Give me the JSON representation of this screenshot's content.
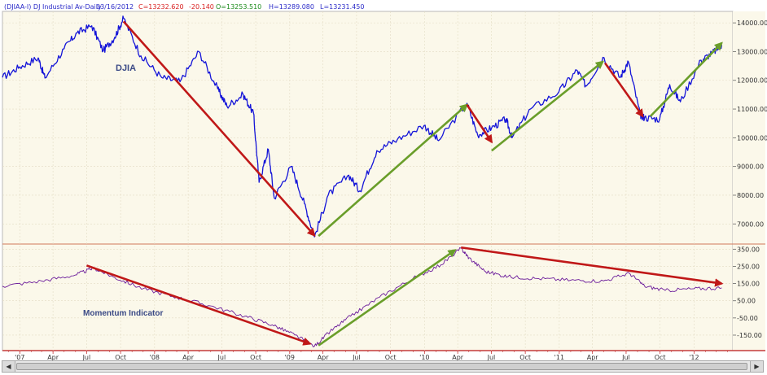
{
  "header": {
    "symbol": "(DJIAA-I) DJ Industrial Av-Daily",
    "date": "03/16/2012",
    "close": "C=13232.620",
    "change": "-20.140",
    "open": "O=13253.510",
    "high": "H=13289.080",
    "low": "L=13231.450"
  },
  "colors": {
    "background": "#fbf8ea",
    "price_line": "#1414d8",
    "momentum_line": "#6a1a9a",
    "down_arrow": "#c01818",
    "up_arrow": "#6a9e2a",
    "header_blue": "#2a2ac8",
    "header_red": "#d82020",
    "header_green": "#1a8a1a"
  },
  "chart_data": [
    {
      "type": "line",
      "title": "DJIA",
      "annotation": "DJIA",
      "x_tick_labels": [
        "'07",
        "Apr",
        "Jul",
        "Oct",
        "'08",
        "Apr",
        "Jul",
        "Oct",
        "'09",
        "Apr",
        "Jul",
        "Oct",
        "'10",
        "Apr",
        "Jul",
        "Oct",
        "'11",
        "Apr",
        "Jul",
        "Oct",
        "'12"
      ],
      "y_tick_labels": [
        "14000.00",
        "13000.00",
        "12000.00",
        "11000.00",
        "10000.00",
        "9000.00",
        "8000.00",
        "7000.00"
      ],
      "ylim": [
        6300,
        14400
      ],
      "xlim": [
        "2006-11-15",
        "2012-04-15"
      ],
      "grid": true,
      "series": [
        {
          "x": [
            "2006-11-15",
            "2007-01-01",
            "2007-02-20",
            "2007-03-10",
            "2007-05-01",
            "2007-06-05",
            "2007-07-15",
            "2007-08-15",
            "2007-09-15",
            "2007-10-09",
            "2007-11-25",
            "2008-01-20",
            "2008-03-10",
            "2008-04-30",
            "2008-06-20",
            "2008-07-15",
            "2008-08-28",
            "2008-09-25",
            "2008-10-10",
            "2008-11-04",
            "2008-11-20",
            "2009-01-05",
            "2009-02-10",
            "2009-03-09",
            "2009-04-15",
            "2009-06-10",
            "2009-07-10",
            "2009-08-25",
            "2009-10-20",
            "2009-12-31",
            "2010-02-08",
            "2010-04-26",
            "2010-05-25",
            "2010-07-02",
            "2010-08-10",
            "2010-08-26",
            "2010-10-15",
            "2010-12-31",
            "2011-02-18",
            "2011-03-15",
            "2011-04-29",
            "2011-06-15",
            "2011-07-07",
            "2011-08-08",
            "2011-08-20",
            "2011-09-30",
            "2011-10-27",
            "2011-11-25",
            "2012-01-20",
            "2012-02-20",
            "2012-03-16"
          ],
          "y": [
            12100,
            12470,
            12780,
            12080,
            13100,
            13650,
            13900,
            13030,
            13500,
            14165,
            12850,
            12100,
            11950,
            13000,
            11700,
            11100,
            11500,
            10850,
            8450,
            9600,
            7900,
            9000,
            7700,
            6550,
            8000,
            8700,
            8150,
            9550,
            9950,
            10430,
            9900,
            11200,
            10100,
            10350,
            10650,
            10000,
            11000,
            11600,
            12350,
            11800,
            12800,
            12100,
            12650,
            10800,
            10700,
            10650,
            11850,
            11250,
            12700,
            12950,
            13232
          ]
        }
      ],
      "arrows": [
        {
          "direction": "down",
          "from": [
            "2007-10-09",
            14050
          ],
          "to": [
            "2009-03-09",
            6600
          ]
        },
        {
          "direction": "up",
          "from": [
            "2009-03-20",
            6580
          ],
          "to": [
            "2010-04-26",
            11150
          ]
        },
        {
          "direction": "down",
          "from": [
            "2010-04-26",
            11150
          ],
          "to": [
            "2010-07-02",
            9850
          ]
        },
        {
          "direction": "up",
          "from": [
            "2010-07-02",
            9550
          ],
          "to": [
            "2011-04-29",
            12650
          ]
        },
        {
          "direction": "down",
          "from": [
            "2011-05-05",
            12600
          ],
          "to": [
            "2011-08-15",
            10750
          ]
        },
        {
          "direction": "up",
          "from": [
            "2011-09-05",
            10750
          ],
          "to": [
            "2012-03-16",
            13300
          ]
        }
      ]
    },
    {
      "type": "line",
      "title": "Momentum Indicator",
      "annotation": "Momentum Indicator",
      "y_tick_labels": [
        "350.00",
        "250.00",
        "150.00",
        "50.00",
        "-50.00",
        "-150.00"
      ],
      "ylim": [
        -240,
        380
      ],
      "xlim": [
        "2006-11-15",
        "2012-04-15"
      ],
      "grid": true,
      "series": [
        {
          "x": [
            "2006-11-15",
            "2007-03-01",
            "2007-06-01",
            "2007-07-20",
            "2007-09-15",
            "2007-12-01",
            "2008-03-01",
            "2008-06-01",
            "2008-09-01",
            "2008-11-15",
            "2009-01-15",
            "2009-03-09",
            "2009-04-20",
            "2009-06-15",
            "2009-09-01",
            "2009-12-01",
            "2010-02-15",
            "2010-04-10",
            "2010-05-01",
            "2010-06-15",
            "2010-08-15",
            "2010-11-01",
            "2011-02-01",
            "2011-05-01",
            "2011-07-10",
            "2011-08-20",
            "2011-10-15",
            "2012-01-01",
            "2012-03-16"
          ],
          "y": [
            135,
            165,
            200,
            240,
            185,
            120,
            70,
            20,
            -40,
            -90,
            -150,
            -215,
            -130,
            -40,
            70,
            180,
            260,
            355,
            300,
            220,
            190,
            180,
            170,
            165,
            210,
            135,
            110,
            120,
            125
          ]
        }
      ],
      "arrows": [
        {
          "direction": "down",
          "from": [
            "2007-07-01",
            255
          ],
          "to": [
            "2009-02-25",
            -200
          ]
        },
        {
          "direction": "up",
          "from": [
            "2009-03-20",
            -210
          ],
          "to": [
            "2010-03-25",
            345
          ]
        },
        {
          "direction": "down",
          "from": [
            "2010-04-10",
            360
          ],
          "to": [
            "2012-03-16",
            150
          ]
        }
      ]
    }
  ]
}
